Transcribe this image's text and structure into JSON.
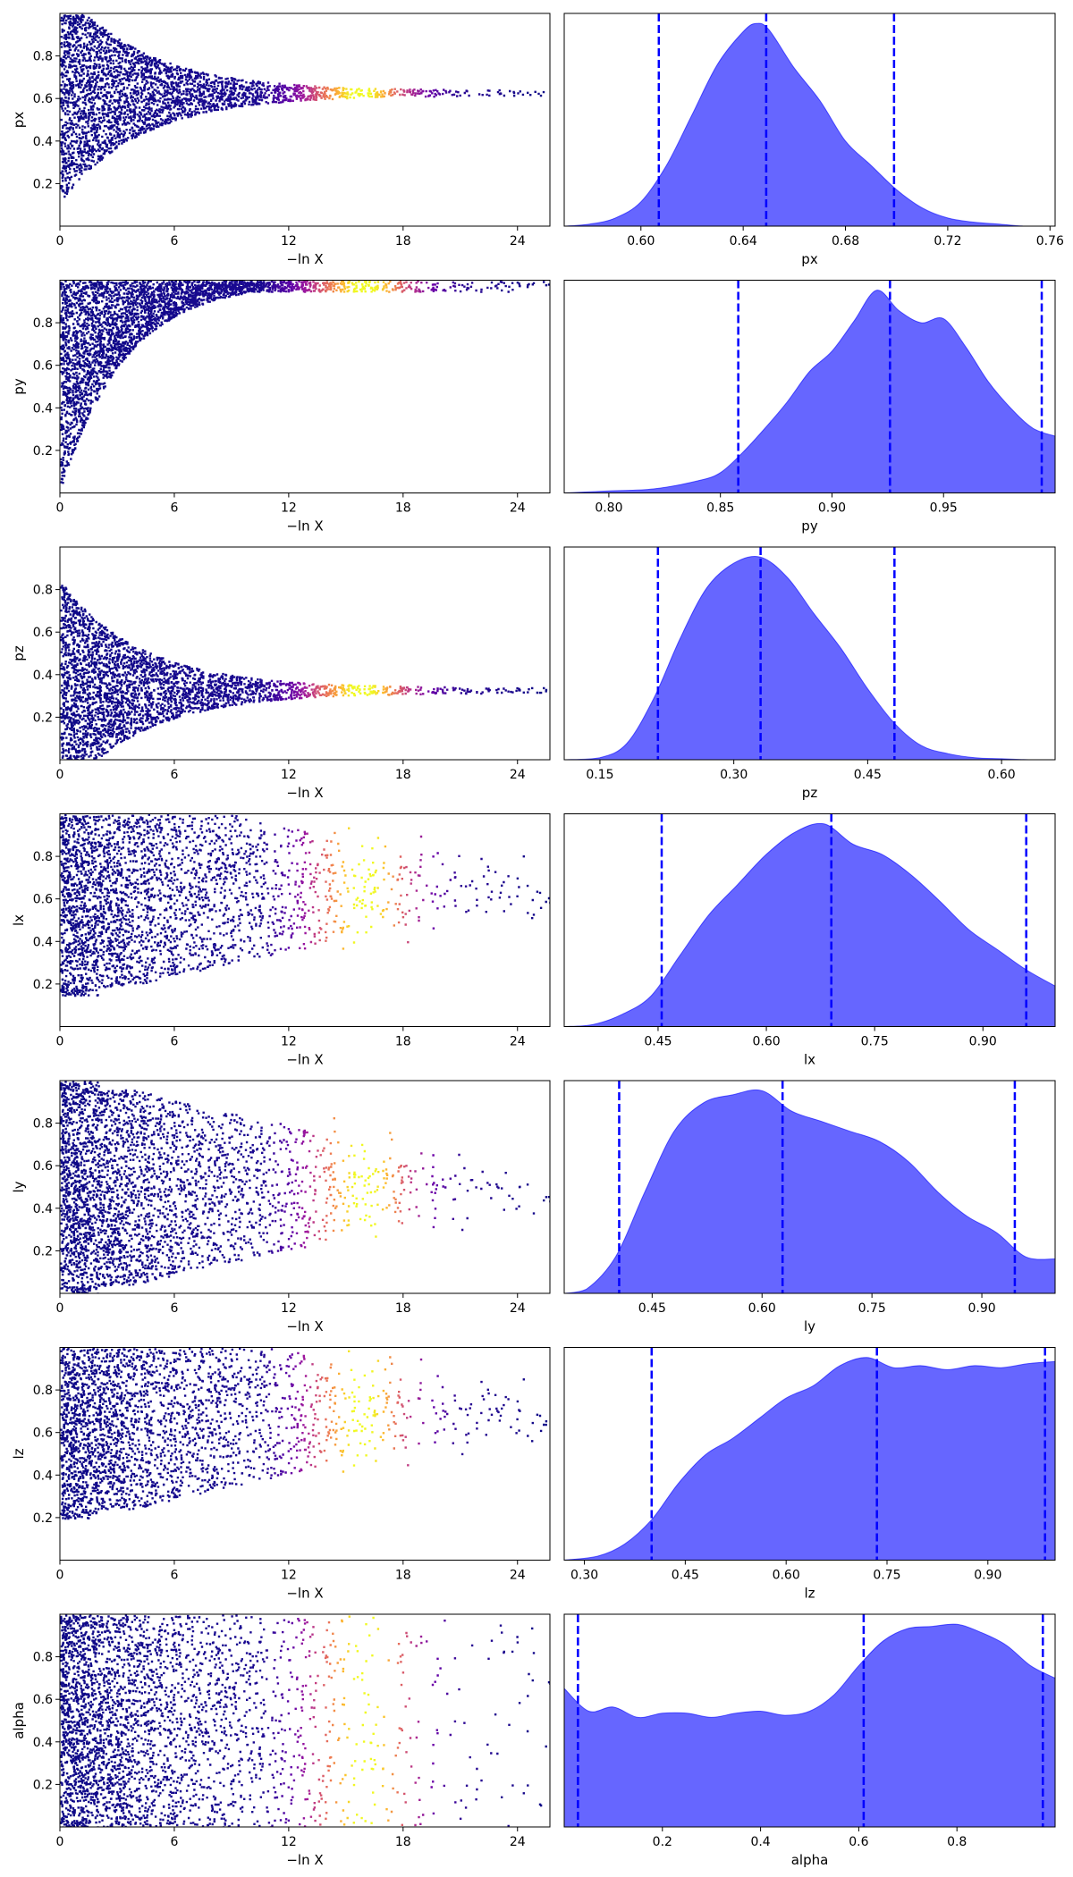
{
  "chart_data": {
    "type": "dynesty-traceplot",
    "trace_xlabel": "−ln X",
    "trace_xticks": [
      0,
      6,
      12,
      18,
      24
    ],
    "trace_xlim": [
      0,
      25.7
    ],
    "colormap": "plasma",
    "density_color": "#0000ff",
    "quantile_line_color": "#0000ff",
    "panels": [
      {
        "param": "px",
        "trace_yticks": [
          "0.2",
          "0.4",
          "0.6",
          "0.8"
        ],
        "trace_ylim": [
          0,
          1
        ],
        "trace_shape": "converge",
        "trace_center": 0.63,
        "density_xlim": [
          0.57,
          0.762
        ],
        "density_xticks": [
          "0.60",
          "0.64",
          "0.68",
          "0.72",
          "0.76"
        ],
        "density_x": [
          0.57,
          0.58,
          0.59,
          0.6,
          0.61,
          0.62,
          0.63,
          0.64,
          0.645,
          0.65,
          0.66,
          0.67,
          0.68,
          0.69,
          0.7,
          0.71,
          0.72,
          0.73,
          0.74,
          0.75,
          0.762
        ],
        "density_y": [
          0.0,
          0.01,
          0.04,
          0.12,
          0.3,
          0.55,
          0.8,
          0.96,
          1.0,
          0.97,
          0.78,
          0.62,
          0.42,
          0.3,
          0.18,
          0.09,
          0.04,
          0.02,
          0.01,
          0.0,
          0.0
        ],
        "quantiles": [
          0.607,
          0.649,
          0.699
        ]
      },
      {
        "param": "py",
        "trace_yticks": [
          "0.2",
          "0.4",
          "0.6",
          "0.8"
        ],
        "trace_ylim": [
          0,
          1
        ],
        "trace_shape": "rise",
        "trace_center": 0.95,
        "density_xlim": [
          0.78,
          1.0
        ],
        "density_xticks": [
          "0.80",
          "0.85",
          "0.90",
          "0.95"
        ],
        "density_x": [
          0.78,
          0.8,
          0.82,
          0.84,
          0.85,
          0.86,
          0.87,
          0.88,
          0.89,
          0.9,
          0.91,
          0.92,
          0.93,
          0.94,
          0.95,
          0.96,
          0.97,
          0.98,
          0.99,
          1.0
        ],
        "density_y": [
          0.0,
          0.01,
          0.02,
          0.06,
          0.1,
          0.2,
          0.32,
          0.45,
          0.6,
          0.7,
          0.85,
          1.0,
          0.9,
          0.84,
          0.86,
          0.72,
          0.55,
          0.42,
          0.32,
          0.28
        ],
        "quantiles": [
          0.858,
          0.926,
          0.994
        ]
      },
      {
        "param": "pz",
        "trace_yticks": [
          "0.2",
          "0.4",
          "0.6",
          "0.8"
        ],
        "trace_ylim": [
          0,
          1
        ],
        "trace_shape": "converge",
        "trace_center": 0.33,
        "density_xlim": [
          0.11,
          0.66
        ],
        "density_xticks": [
          "0.15",
          "0.30",
          "0.45",
          "0.60"
        ],
        "density_x": [
          0.11,
          0.15,
          0.18,
          0.21,
          0.24,
          0.27,
          0.3,
          0.33,
          0.36,
          0.39,
          0.42,
          0.45,
          0.48,
          0.51,
          0.54,
          0.57,
          0.6,
          0.63,
          0.66
        ],
        "density_y": [
          0.0,
          0.01,
          0.08,
          0.3,
          0.6,
          0.85,
          0.97,
          1.0,
          0.9,
          0.72,
          0.55,
          0.35,
          0.18,
          0.07,
          0.03,
          0.01,
          0.005,
          0.0,
          0.0
        ],
        "quantiles": [
          0.215,
          0.33,
          0.48
        ]
      },
      {
        "param": "lx",
        "trace_yticks": [
          "0.2",
          "0.4",
          "0.6",
          "0.8"
        ],
        "trace_ylim": [
          0,
          1
        ],
        "trace_shape": "widen",
        "trace_center": 0.65,
        "density_xlim": [
          0.32,
          1.0
        ],
        "density_xticks": [
          "0.45",
          "0.60",
          "0.75",
          "0.90"
        ],
        "density_x": [
          0.32,
          0.36,
          0.4,
          0.44,
          0.48,
          0.52,
          0.56,
          0.6,
          0.64,
          0.68,
          0.72,
          0.76,
          0.8,
          0.84,
          0.88,
          0.92,
          0.96,
          1.0
        ],
        "density_y": [
          0.0,
          0.01,
          0.06,
          0.15,
          0.35,
          0.55,
          0.7,
          0.85,
          0.96,
          1.0,
          0.9,
          0.85,
          0.75,
          0.62,
          0.48,
          0.38,
          0.28,
          0.2
        ],
        "quantiles": [
          0.455,
          0.69,
          0.96
        ]
      },
      {
        "param": "ly",
        "trace_yticks": [
          "0.2",
          "0.4",
          "0.6",
          "0.8"
        ],
        "trace_ylim": [
          0,
          1
        ],
        "trace_shape": "widen",
        "trace_center": 0.5,
        "density_xlim": [
          0.33,
          1.0
        ],
        "density_xticks": [
          "0.45",
          "0.60",
          "0.75",
          "0.90"
        ],
        "density_x": [
          0.33,
          0.36,
          0.4,
          0.44,
          0.48,
          0.52,
          0.56,
          0.6,
          0.64,
          0.68,
          0.72,
          0.76,
          0.8,
          0.84,
          0.88,
          0.92,
          0.96,
          1.0
        ],
        "density_y": [
          0.0,
          0.02,
          0.18,
          0.5,
          0.8,
          0.94,
          0.98,
          1.0,
          0.9,
          0.85,
          0.8,
          0.75,
          0.65,
          0.5,
          0.38,
          0.3,
          0.18,
          0.17
        ],
        "quantiles": [
          0.405,
          0.628,
          0.945
        ]
      },
      {
        "param": "lz",
        "trace_yticks": [
          "0.2",
          "0.4",
          "0.6",
          "0.8"
        ],
        "trace_ylim": [
          0,
          1
        ],
        "trace_shape": "widen",
        "trace_center": 0.7,
        "density_xlim": [
          0.27,
          1.0
        ],
        "density_xticks": [
          "0.30",
          "0.45",
          "0.60",
          "0.75",
          "0.90"
        ],
        "density_x": [
          0.27,
          0.32,
          0.36,
          0.4,
          0.44,
          0.48,
          0.52,
          0.56,
          0.6,
          0.64,
          0.68,
          0.72,
          0.76,
          0.8,
          0.84,
          0.88,
          0.92,
          0.96,
          1.0
        ],
        "density_y": [
          0.0,
          0.02,
          0.08,
          0.2,
          0.38,
          0.52,
          0.6,
          0.7,
          0.8,
          0.86,
          0.96,
          1.0,
          0.95,
          0.96,
          0.94,
          0.96,
          0.95,
          0.97,
          0.98
        ],
        "quantiles": [
          0.4,
          0.735,
          0.985
        ]
      },
      {
        "param": "alpha",
        "trace_yticks": [
          "0.2",
          "0.4",
          "0.6",
          "0.8"
        ],
        "trace_ylim": [
          0,
          1
        ],
        "trace_shape": "uniform",
        "trace_center": 0.5,
        "density_xlim": [
          0.0,
          1.0
        ],
        "density_xticks": [
          "0.2",
          "0.4",
          "0.6",
          "0.8"
        ],
        "density_x": [
          0.0,
          0.05,
          0.1,
          0.15,
          0.2,
          0.25,
          0.3,
          0.35,
          0.4,
          0.45,
          0.5,
          0.55,
          0.6,
          0.65,
          0.7,
          0.75,
          0.8,
          0.85,
          0.9,
          0.95,
          1.0
        ],
        "density_y": [
          0.67,
          0.56,
          0.58,
          0.53,
          0.55,
          0.55,
          0.53,
          0.55,
          0.56,
          0.54,
          0.56,
          0.64,
          0.78,
          0.9,
          0.96,
          0.97,
          0.98,
          0.94,
          0.88,
          0.78,
          0.72
        ],
        "quantiles": [
          0.028,
          0.61,
          0.975
        ]
      }
    ]
  }
}
